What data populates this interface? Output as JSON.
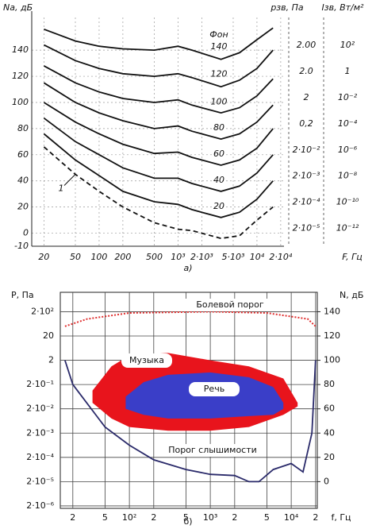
{
  "chart_data": [
    {
      "type": "line",
      "title": "а)",
      "y_label": "Nа, дБ",
      "x_label": "F, Гц",
      "log_x": true,
      "grid": true,
      "legend_title": "Фон",
      "pressure_header": "pзв, Па",
      "intensity_header": "Iзв, Вт/м²",
      "pressure_labels": [
        "2.00",
        "2.0",
        "2",
        "0,2",
        "2·10⁻²",
        "2·10⁻³",
        "2·10⁻⁴",
        "2·10⁻⁵"
      ],
      "intensity_labels": [
        "10²",
        "1",
        "10⁻²",
        "10⁻⁴",
        "10⁻⁶",
        "10⁻⁸",
        "10⁻¹⁰",
        "10⁻¹²"
      ],
      "xlim": [
        14,
        22000
      ],
      "xticks": [
        20,
        50,
        100,
        200,
        500,
        {
          "value": 1000,
          "label": "10³"
        },
        {
          "value": 2000,
          "label": "2·10³"
        },
        {
          "value": 5000,
          "label": "5·10³"
        },
        {
          "value": 10000,
          "label": "10⁴"
        },
        {
          "value": 20000,
          "label": "2·10⁴"
        }
      ],
      "ylim": [
        -10,
        165
      ],
      "yticks": [
        -10,
        0,
        20,
        40,
        60,
        80,
        100,
        120,
        140
      ],
      "x": [
        20,
        50,
        100,
        200,
        500,
        1000,
        1500,
        3500,
        6000,
        10000,
        16000
      ],
      "series": [
        {
          "name": "140",
          "color": "#111111",
          "values": [
            156,
            147,
            143,
            141,
            140,
            143,
            140,
            133,
            138,
            148,
            157
          ]
        },
        {
          "name": "120",
          "color": "#111111",
          "values": [
            144,
            132,
            126,
            122,
            120,
            122,
            119,
            112,
            117,
            126,
            140
          ]
        },
        {
          "name": "100",
          "color": "#111111",
          "values": [
            128,
            115,
            108,
            103,
            100,
            102,
            98,
            92,
            96,
            105,
            118
          ]
        },
        {
          "name": "80",
          "color": "#111111",
          "values": [
            115,
            100,
            92,
            86,
            80,
            82,
            78,
            72,
            76,
            85,
            98
          ]
        },
        {
          "name": "60",
          "color": "#111111",
          "values": [
            100,
            85,
            76,
            68,
            61,
            62,
            58,
            52,
            56,
            65,
            80
          ]
        },
        {
          "name": "40",
          "color": "#111111",
          "values": [
            88,
            70,
            60,
            50,
            42,
            42,
            38,
            32,
            36,
            46,
            60
          ]
        },
        {
          "name": "20",
          "color": "#111111",
          "values": [
            76,
            56,
            44,
            32,
            24,
            22,
            18,
            12,
            16,
            26,
            40
          ]
        },
        {
          "name": "1",
          "color": "#111111",
          "dashed": true,
          "values": [
            66,
            45,
            32,
            20,
            8,
            3,
            2,
            -4,
            -2,
            10,
            20
          ]
        }
      ]
    },
    {
      "type": "area_line",
      "title": "б)",
      "y_label": "P, Па",
      "y2_label": "N, дБ",
      "x_label": "f, Гц",
      "log_x": true,
      "log_y": true,
      "grid": true,
      "xlim": [
        14,
        21000
      ],
      "xticks": [
        {
          "value": 20,
          "label": "2"
        },
        {
          "value": 50,
          "label": "5"
        },
        {
          "value": 100,
          "label": "10²"
        },
        {
          "value": 200,
          "label": "2"
        },
        {
          "value": 500,
          "label": "5"
        },
        {
          "value": 1000,
          "label": "10³"
        },
        {
          "value": 2000,
          "label": "2"
        },
        {
          "value": 5000,
          "label": "5"
        },
        {
          "value": 10000,
          "label": "10⁴"
        },
        {
          "value": 20000,
          "label": "2"
        }
      ],
      "ylim": [
        1.589e-06,
        1262
      ],
      "yticks": [
        {
          "value": 200,
          "label": "2·10²"
        },
        20,
        2,
        {
          "value": 0.2,
          "label": "2·10⁻¹"
        },
        {
          "value": 0.02,
          "label": "2·10⁻²"
        },
        {
          "value": 0.002,
          "label": "2·10⁻³"
        },
        {
          "value": 0.0002,
          "label": "2·10⁻⁴"
        },
        {
          "value": 2e-05,
          "label": "2·10⁻⁵"
        },
        {
          "value": 2e-06,
          "label": "2·10⁻⁶"
        }
      ],
      "y2lim": [
        -22,
        156
      ],
      "y2ticks": [
        0,
        20,
        40,
        60,
        80,
        100,
        120,
        140
      ],
      "areas": [
        {
          "name": "Музыка",
          "color": "#e8141c",
          "x": [
            35,
            60,
            100,
            300,
            1000,
            3000,
            8000,
            12000
          ],
          "upper": [
            75,
            95,
            104,
            106,
            100,
            95,
            85,
            65
          ],
          "lower": [
            65,
            52,
            45,
            42,
            42,
            45,
            55,
            62
          ]
        },
        {
          "name": "Речь",
          "color": "#3a3ec8",
          "x": [
            90,
            150,
            300,
            1000,
            3000,
            6000,
            8000
          ],
          "upper": [
            70,
            82,
            88,
            90,
            86,
            78,
            65
          ],
          "lower": [
            60,
            55,
            52,
            52,
            54,
            55,
            60
          ]
        }
      ],
      "series": [
        {
          "name": "Болевой порог",
          "color": "#e03030",
          "dotted": true,
          "axis": "y2",
          "x": [
            16,
            30,
            100,
            1000,
            5000,
            16000,
            20000
          ],
          "values": [
            128,
            134,
            139,
            140,
            139,
            134,
            128
          ]
        },
        {
          "name": "Порог слышимости",
          "color": "#2a2a6a",
          "axis": "y2",
          "x": [
            16,
            20,
            50,
            100,
            200,
            500,
            1000,
            2000,
            3000,
            4000,
            6000,
            10000,
            14000,
            18000,
            20000
          ],
          "values": [
            100,
            80,
            45,
            30,
            18,
            10,
            6,
            5,
            0,
            0,
            10,
            15,
            8,
            40,
            100
          ]
        }
      ]
    }
  ]
}
